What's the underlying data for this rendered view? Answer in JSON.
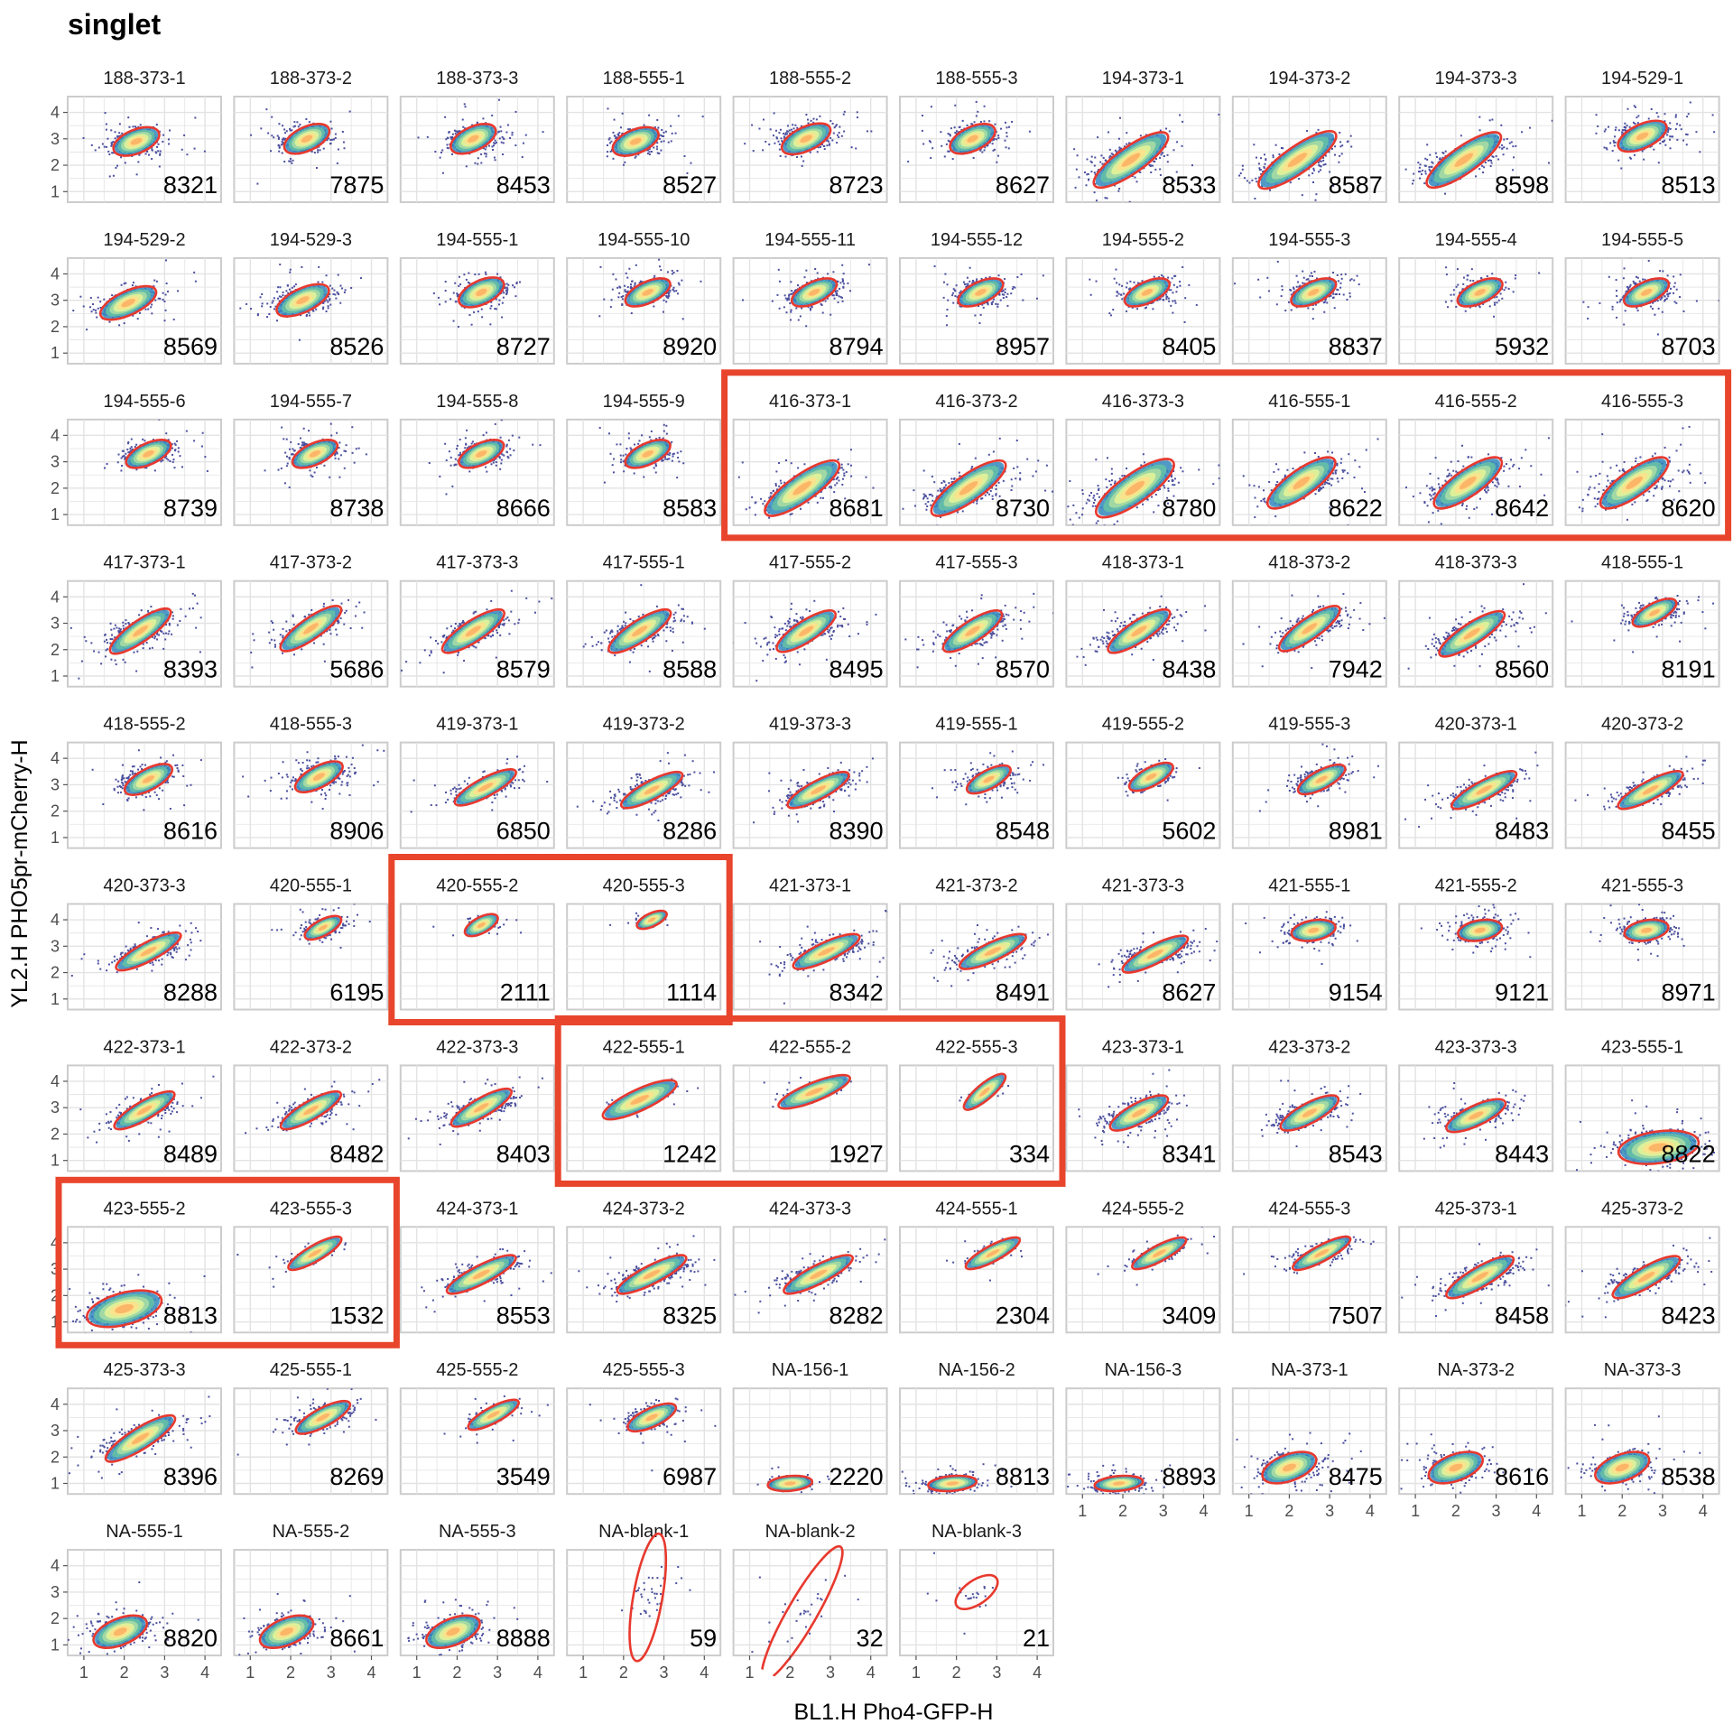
{
  "chart_data": {
    "type": "scatter",
    "title": "singlet",
    "xlabel": "BL1.H Pho4-GFP-H",
    "ylabel": "YL2.H PHO5pr-mCherry-H",
    "xlim": [
      0.6,
      4.4
    ],
    "ylim": [
      0.6,
      4.6
    ],
    "x_ticks": [
      "1",
      "2",
      "3",
      "4"
    ],
    "y_ticks": [
      "1",
      "2",
      "3",
      "4"
    ],
    "grid": true,
    "colors": {
      "points": "#4b4f9e",
      "ellipse": "#e8392e",
      "density": [
        "#5e4fa2",
        "#3288bd",
        "#66c2a5",
        "#abdda4",
        "#e6f598",
        "#fee08b",
        "#fdae61"
      ],
      "highlight_box": "#e8452c",
      "panel_border": "#cccccc",
      "grid": "#e3e3e3"
    },
    "panels": [
      {
        "label": "188-373-1",
        "count": "8321",
        "cx": 2.3,
        "cy": 2.9,
        "rx": 0.6,
        "ry": 0.45,
        "angle": 22
      },
      {
        "label": "188-373-2",
        "count": "7875",
        "cx": 2.4,
        "cy": 3.0,
        "rx": 0.6,
        "ry": 0.45,
        "angle": 25
      },
      {
        "label": "188-373-3",
        "count": "8453",
        "cx": 2.4,
        "cy": 3.0,
        "rx": 0.6,
        "ry": 0.45,
        "angle": 25
      },
      {
        "label": "188-555-1",
        "count": "8527",
        "cx": 2.3,
        "cy": 2.9,
        "rx": 0.6,
        "ry": 0.45,
        "angle": 22
      },
      {
        "label": "188-555-2",
        "count": "8723",
        "cx": 2.4,
        "cy": 3.0,
        "rx": 0.65,
        "ry": 0.45,
        "angle": 25
      },
      {
        "label": "188-555-3",
        "count": "8627",
        "cx": 2.4,
        "cy": 3.0,
        "rx": 0.6,
        "ry": 0.45,
        "angle": 25
      },
      {
        "label": "194-373-1",
        "count": "8533",
        "cx": 2.2,
        "cy": 2.2,
        "rx": 1.1,
        "ry": 0.5,
        "angle": 35
      },
      {
        "label": "194-373-2",
        "count": "8587",
        "cx": 2.2,
        "cy": 2.2,
        "rx": 1.15,
        "ry": 0.5,
        "angle": 35
      },
      {
        "label": "194-373-3",
        "count": "8598",
        "cx": 2.2,
        "cy": 2.2,
        "rx": 1.1,
        "ry": 0.5,
        "angle": 35
      },
      {
        "label": "194-529-1",
        "count": "8513",
        "cx": 2.5,
        "cy": 3.1,
        "rx": 0.65,
        "ry": 0.45,
        "angle": 25
      },
      {
        "label": "194-529-2",
        "count": "8569",
        "cx": 2.1,
        "cy": 2.9,
        "rx": 0.75,
        "ry": 0.45,
        "angle": 25
      },
      {
        "label": "194-529-3",
        "count": "8526",
        "cx": 2.3,
        "cy": 3.0,
        "rx": 0.7,
        "ry": 0.45,
        "angle": 25
      },
      {
        "label": "194-555-1",
        "count": "8727",
        "cx": 2.6,
        "cy": 3.3,
        "rx": 0.6,
        "ry": 0.45,
        "angle": 25
      },
      {
        "label": "194-555-10",
        "count": "8920",
        "cx": 2.6,
        "cy": 3.3,
        "rx": 0.6,
        "ry": 0.4,
        "angle": 25
      },
      {
        "label": "194-555-11",
        "count": "8794",
        "cx": 2.6,
        "cy": 3.3,
        "rx": 0.6,
        "ry": 0.4,
        "angle": 25
      },
      {
        "label": "194-555-12",
        "count": "8957",
        "cx": 2.6,
        "cy": 3.3,
        "rx": 0.6,
        "ry": 0.4,
        "angle": 25
      },
      {
        "label": "194-555-2",
        "count": "8405",
        "cx": 2.6,
        "cy": 3.3,
        "rx": 0.6,
        "ry": 0.4,
        "angle": 25
      },
      {
        "label": "194-555-3",
        "count": "8837",
        "cx": 2.6,
        "cy": 3.3,
        "rx": 0.6,
        "ry": 0.4,
        "angle": 25
      },
      {
        "label": "194-555-4",
        "count": "5932",
        "cx": 2.6,
        "cy": 3.3,
        "rx": 0.6,
        "ry": 0.4,
        "angle": 25
      },
      {
        "label": "194-555-5",
        "count": "8703",
        "cx": 2.6,
        "cy": 3.3,
        "rx": 0.6,
        "ry": 0.4,
        "angle": 25
      },
      {
        "label": "194-555-6",
        "count": "8739",
        "cx": 2.6,
        "cy": 3.3,
        "rx": 0.6,
        "ry": 0.4,
        "angle": 25
      },
      {
        "label": "194-555-7",
        "count": "8738",
        "cx": 2.6,
        "cy": 3.3,
        "rx": 0.6,
        "ry": 0.4,
        "angle": 25
      },
      {
        "label": "194-555-8",
        "count": "8666",
        "cx": 2.6,
        "cy": 3.3,
        "rx": 0.6,
        "ry": 0.4,
        "angle": 25
      },
      {
        "label": "194-555-9",
        "count": "8583",
        "cx": 2.6,
        "cy": 3.3,
        "rx": 0.6,
        "ry": 0.4,
        "angle": 25
      },
      {
        "label": "416-373-1",
        "count": "8681",
        "cx": 2.3,
        "cy": 2.0,
        "rx": 1.1,
        "ry": 0.5,
        "angle": 35
      },
      {
        "label": "416-373-2",
        "count": "8730",
        "cx": 2.3,
        "cy": 2.0,
        "rx": 1.1,
        "ry": 0.5,
        "angle": 35
      },
      {
        "label": "416-373-3",
        "count": "8780",
        "cx": 2.3,
        "cy": 2.0,
        "rx": 1.15,
        "ry": 0.55,
        "angle": 35
      },
      {
        "label": "416-555-1",
        "count": "8622",
        "cx": 2.3,
        "cy": 2.2,
        "rx": 1.0,
        "ry": 0.5,
        "angle": 35
      },
      {
        "label": "416-555-2",
        "count": "8642",
        "cx": 2.3,
        "cy": 2.2,
        "rx": 1.0,
        "ry": 0.5,
        "angle": 35
      },
      {
        "label": "416-555-3",
        "count": "8620",
        "cx": 2.3,
        "cy": 2.2,
        "rx": 1.0,
        "ry": 0.5,
        "angle": 35
      },
      {
        "label": "417-373-1",
        "count": "8393",
        "cx": 2.4,
        "cy": 2.7,
        "rx": 0.9,
        "ry": 0.4,
        "angle": 35
      },
      {
        "label": "417-373-2",
        "count": "5686",
        "cx": 2.5,
        "cy": 2.8,
        "rx": 0.9,
        "ry": 0.4,
        "angle": 35
      },
      {
        "label": "417-373-3",
        "count": "8579",
        "cx": 2.4,
        "cy": 2.7,
        "rx": 0.9,
        "ry": 0.4,
        "angle": 33
      },
      {
        "label": "417-555-1",
        "count": "8588",
        "cx": 2.4,
        "cy": 2.7,
        "rx": 0.9,
        "ry": 0.4,
        "angle": 33
      },
      {
        "label": "417-555-2",
        "count": "8495",
        "cx": 2.4,
        "cy": 2.7,
        "rx": 0.85,
        "ry": 0.4,
        "angle": 33
      },
      {
        "label": "417-555-3",
        "count": "8570",
        "cx": 2.4,
        "cy": 2.7,
        "rx": 0.85,
        "ry": 0.4,
        "angle": 33
      },
      {
        "label": "418-373-1",
        "count": "8438",
        "cx": 2.4,
        "cy": 2.7,
        "rx": 0.9,
        "ry": 0.4,
        "angle": 33
      },
      {
        "label": "418-373-2",
        "count": "7942",
        "cx": 2.5,
        "cy": 2.8,
        "rx": 0.9,
        "ry": 0.4,
        "angle": 35
      },
      {
        "label": "418-373-3",
        "count": "8560",
        "cx": 2.4,
        "cy": 2.6,
        "rx": 0.95,
        "ry": 0.4,
        "angle": 33
      },
      {
        "label": "418-555-1",
        "count": "8191",
        "cx": 2.8,
        "cy": 3.4,
        "rx": 0.6,
        "ry": 0.35,
        "angle": 28
      },
      {
        "label": "418-555-2",
        "count": "8616",
        "cx": 2.6,
        "cy": 3.2,
        "rx": 0.65,
        "ry": 0.4,
        "angle": 28
      },
      {
        "label": "418-555-3",
        "count": "8906",
        "cx": 2.7,
        "cy": 3.3,
        "rx": 0.65,
        "ry": 0.4,
        "angle": 28
      },
      {
        "label": "419-373-1",
        "count": "6850",
        "cx": 2.7,
        "cy": 2.9,
        "rx": 0.85,
        "ry": 0.35,
        "angle": 28
      },
      {
        "label": "419-373-2",
        "count": "8286",
        "cx": 2.7,
        "cy": 2.8,
        "rx": 0.85,
        "ry": 0.35,
        "angle": 28
      },
      {
        "label": "419-373-3",
        "count": "8390",
        "cx": 2.7,
        "cy": 2.8,
        "rx": 0.85,
        "ry": 0.35,
        "angle": 28
      },
      {
        "label": "419-555-1",
        "count": "8548",
        "cx": 2.8,
        "cy": 3.2,
        "rx": 0.6,
        "ry": 0.35,
        "angle": 28
      },
      {
        "label": "419-555-2",
        "count": "5602",
        "cx": 2.7,
        "cy": 3.3,
        "rx": 0.6,
        "ry": 0.35,
        "angle": 28
      },
      {
        "label": "419-555-3",
        "count": "8981",
        "cx": 2.8,
        "cy": 3.2,
        "rx": 0.65,
        "ry": 0.35,
        "angle": 28
      },
      {
        "label": "420-373-1",
        "count": "8483",
        "cx": 2.7,
        "cy": 2.8,
        "rx": 0.9,
        "ry": 0.35,
        "angle": 28
      },
      {
        "label": "420-373-2",
        "count": "8455",
        "cx": 2.7,
        "cy": 2.8,
        "rx": 0.9,
        "ry": 0.35,
        "angle": 28
      },
      {
        "label": "420-373-3",
        "count": "8288",
        "cx": 2.6,
        "cy": 2.8,
        "rx": 0.9,
        "ry": 0.35,
        "angle": 28
      },
      {
        "label": "420-555-1",
        "count": "6195",
        "cx": 2.8,
        "cy": 3.7,
        "rx": 0.5,
        "ry": 0.3,
        "angle": 28
      },
      {
        "label": "420-555-2",
        "count": "2111",
        "cx": 2.6,
        "cy": 3.8,
        "rx": 0.45,
        "ry": 0.3,
        "angle": 28
      },
      {
        "label": "420-555-3",
        "count": "1114",
        "cx": 2.7,
        "cy": 4.0,
        "rx": 0.4,
        "ry": 0.25,
        "angle": 25
      },
      {
        "label": "421-373-1",
        "count": "8342",
        "cx": 2.9,
        "cy": 2.8,
        "rx": 0.9,
        "ry": 0.35,
        "angle": 25
      },
      {
        "label": "421-373-2",
        "count": "8491",
        "cx": 2.9,
        "cy": 2.8,
        "rx": 0.9,
        "ry": 0.35,
        "angle": 25
      },
      {
        "label": "421-373-3",
        "count": "8627",
        "cx": 2.8,
        "cy": 2.7,
        "rx": 0.9,
        "ry": 0.35,
        "angle": 27
      },
      {
        "label": "421-555-1",
        "count": "9154",
        "cx": 2.6,
        "cy": 3.6,
        "rx": 0.55,
        "ry": 0.38,
        "angle": 10
      },
      {
        "label": "421-555-2",
        "count": "9121",
        "cx": 2.6,
        "cy": 3.6,
        "rx": 0.55,
        "ry": 0.38,
        "angle": 10
      },
      {
        "label": "421-555-3",
        "count": "8971",
        "cx": 2.6,
        "cy": 3.6,
        "rx": 0.55,
        "ry": 0.38,
        "angle": 10
      },
      {
        "label": "422-373-1",
        "count": "8489",
        "cx": 2.5,
        "cy": 2.9,
        "rx": 0.85,
        "ry": 0.35,
        "angle": 30
      },
      {
        "label": "422-373-2",
        "count": "8482",
        "cx": 2.5,
        "cy": 2.9,
        "rx": 0.85,
        "ry": 0.35,
        "angle": 30
      },
      {
        "label": "422-373-3",
        "count": "8403",
        "cx": 2.6,
        "cy": 3.0,
        "rx": 0.85,
        "ry": 0.35,
        "angle": 30
      },
      {
        "label": "422-555-1",
        "count": "1242",
        "cx": 2.4,
        "cy": 3.3,
        "rx": 1.0,
        "ry": 0.4,
        "angle": 25
      },
      {
        "label": "422-555-2",
        "count": "1927",
        "cx": 2.6,
        "cy": 3.6,
        "rx": 0.95,
        "ry": 0.35,
        "angle": 22
      },
      {
        "label": "422-555-3",
        "count": "334",
        "cx": 2.7,
        "cy": 3.6,
        "rx": 0.65,
        "ry": 0.3,
        "angle": 40
      },
      {
        "label": "423-373-1",
        "count": "8341",
        "cx": 2.4,
        "cy": 2.8,
        "rx": 0.8,
        "ry": 0.38,
        "angle": 28
      },
      {
        "label": "423-373-2",
        "count": "8543",
        "cx": 2.5,
        "cy": 2.8,
        "rx": 0.8,
        "ry": 0.38,
        "angle": 28
      },
      {
        "label": "423-373-3",
        "count": "8443",
        "cx": 2.5,
        "cy": 2.7,
        "rx": 0.8,
        "ry": 0.38,
        "angle": 25
      },
      {
        "label": "423-555-1",
        "count": "8822",
        "cx": 2.9,
        "cy": 1.5,
        "rx": 1.0,
        "ry": 0.6,
        "angle": 8
      },
      {
        "label": "423-555-2",
        "count": "8813",
        "cx": 2.0,
        "cy": 1.5,
        "rx": 0.95,
        "ry": 0.6,
        "angle": 15
      },
      {
        "label": "423-555-3",
        "count": "1532",
        "cx": 2.6,
        "cy": 3.6,
        "rx": 0.75,
        "ry": 0.3,
        "angle": 30
      },
      {
        "label": "424-373-1",
        "count": "8553",
        "cx": 2.6,
        "cy": 2.8,
        "rx": 0.95,
        "ry": 0.35,
        "angle": 27
      },
      {
        "label": "424-373-2",
        "count": "8325",
        "cx": 2.7,
        "cy": 2.8,
        "rx": 0.95,
        "ry": 0.35,
        "angle": 27
      },
      {
        "label": "424-373-3",
        "count": "8282",
        "cx": 2.7,
        "cy": 2.8,
        "rx": 0.95,
        "ry": 0.35,
        "angle": 27
      },
      {
        "label": "424-555-1",
        "count": "2304",
        "cx": 2.9,
        "cy": 3.6,
        "rx": 0.75,
        "ry": 0.3,
        "angle": 28
      },
      {
        "label": "424-555-2",
        "count": "3409",
        "cx": 2.9,
        "cy": 3.6,
        "rx": 0.75,
        "ry": 0.3,
        "angle": 28
      },
      {
        "label": "424-555-3",
        "count": "7507",
        "cx": 2.8,
        "cy": 3.6,
        "rx": 0.8,
        "ry": 0.3,
        "angle": 28
      },
      {
        "label": "425-373-1",
        "count": "8458",
        "cx": 2.6,
        "cy": 2.7,
        "rx": 0.95,
        "ry": 0.38,
        "angle": 30
      },
      {
        "label": "425-373-2",
        "count": "8423",
        "cx": 2.6,
        "cy": 2.7,
        "rx": 0.95,
        "ry": 0.38,
        "angle": 30
      },
      {
        "label": "425-373-3",
        "count": "8396",
        "cx": 2.4,
        "cy": 2.7,
        "rx": 1.0,
        "ry": 0.4,
        "angle": 32
      },
      {
        "label": "425-555-1",
        "count": "8269",
        "cx": 2.8,
        "cy": 3.5,
        "rx": 0.75,
        "ry": 0.35,
        "angle": 28
      },
      {
        "label": "425-555-2",
        "count": "3549",
        "cx": 2.9,
        "cy": 3.6,
        "rx": 0.7,
        "ry": 0.3,
        "angle": 28
      },
      {
        "label": "425-555-3",
        "count": "6987",
        "cx": 2.7,
        "cy": 3.5,
        "rx": 0.65,
        "ry": 0.35,
        "angle": 25
      },
      {
        "label": "NA-156-1",
        "count": "2220",
        "cx": 2.0,
        "cy": 1.0,
        "rx": 0.55,
        "ry": 0.28,
        "angle": 5
      },
      {
        "label": "NA-156-2",
        "count": "8813",
        "cx": 1.9,
        "cy": 1.0,
        "rx": 0.6,
        "ry": 0.28,
        "angle": 5
      },
      {
        "label": "NA-156-3",
        "count": "8893",
        "cx": 1.9,
        "cy": 1.0,
        "rx": 0.6,
        "ry": 0.28,
        "angle": 5
      },
      {
        "label": "NA-373-1",
        "count": "8475",
        "cx": 2.0,
        "cy": 1.6,
        "rx": 0.7,
        "ry": 0.5,
        "angle": 20
      },
      {
        "label": "NA-373-2",
        "count": "8616",
        "cx": 2.0,
        "cy": 1.6,
        "rx": 0.7,
        "ry": 0.5,
        "angle": 20
      },
      {
        "label": "NA-373-3",
        "count": "8538",
        "cx": 2.0,
        "cy": 1.6,
        "rx": 0.7,
        "ry": 0.5,
        "angle": 20
      },
      {
        "label": "NA-555-1",
        "count": "8820",
        "cx": 1.9,
        "cy": 1.5,
        "rx": 0.7,
        "ry": 0.5,
        "angle": 22
      },
      {
        "label": "NA-555-2",
        "count": "8661",
        "cx": 1.9,
        "cy": 1.5,
        "rx": 0.7,
        "ry": 0.5,
        "angle": 22
      },
      {
        "label": "NA-555-3",
        "count": "8888",
        "cx": 1.9,
        "cy": 1.5,
        "rx": 0.7,
        "ry": 0.5,
        "angle": 22
      },
      {
        "label": "NA-blank-1",
        "count": "59",
        "cx": 2.6,
        "cy": 2.8,
        "rx": 1.6,
        "ry": 0.55,
        "angle": 80
      },
      {
        "label": "NA-blank-2",
        "count": "32",
        "cx": 2.3,
        "cy": 2.2,
        "rx": 1.9,
        "ry": 0.55,
        "angle": 60
      },
      {
        "label": "NA-blank-3",
        "count": "21",
        "cx": 2.5,
        "cy": 3.0,
        "rx": 0.6,
        "ry": 0.45,
        "angle": 35
      }
    ],
    "highlights": [
      {
        "row": 2,
        "col_start": 4,
        "col_end": 9
      },
      {
        "row": 5,
        "col_start": 2,
        "col_end": 3
      },
      {
        "row": 6,
        "col_start": 3,
        "col_end": 5
      },
      {
        "row": 7,
        "col_start": 0,
        "col_end": 1
      }
    ]
  }
}
